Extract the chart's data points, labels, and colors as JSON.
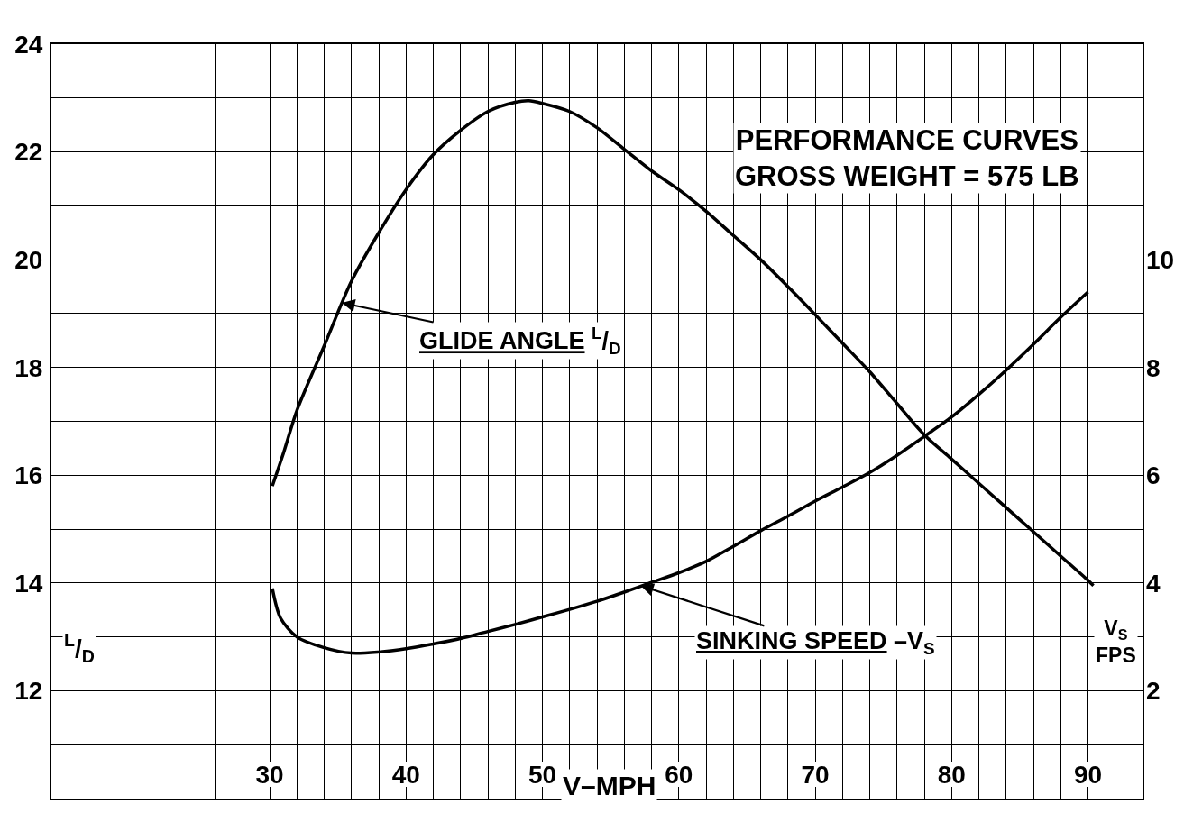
{
  "chart_data": {
    "type": "line",
    "title": "PERFORMANCE CURVES\nGROSS WEIGHT = 575 LB",
    "xlabel": "V–MPH",
    "ylabel": "$^{L}$/$_{D}$",
    "y2label": "V$_{S}$\nFPS",
    "xlim": [
      14,
      94
    ],
    "xticks": [
      {
        "value": 18,
        "label": null
      },
      {
        "value": 22,
        "label": null
      },
      {
        "value": 26,
        "label": null
      },
      30,
      {
        "value": 32,
        "label": null
      },
      {
        "value": 34,
        "label": null
      },
      {
        "value": 36,
        "label": null
      },
      {
        "value": 38,
        "label": null
      },
      40,
      {
        "value": 42,
        "label": null
      },
      {
        "value": 44,
        "label": null
      },
      {
        "value": 46,
        "label": null
      },
      {
        "value": 48,
        "label": null
      },
      50,
      {
        "value": 52,
        "label": null
      },
      {
        "value": 54,
        "label": null
      },
      {
        "value": 56,
        "label": null
      },
      {
        "value": 58,
        "label": null
      },
      60,
      {
        "value": 62,
        "label": null
      },
      {
        "value": 64,
        "label": null
      },
      {
        "value": 66,
        "label": null
      },
      {
        "value": 68,
        "label": null
      },
      70,
      {
        "value": 72,
        "label": null
      },
      {
        "value": 74,
        "label": null
      },
      {
        "value": 76,
        "label": null
      },
      {
        "value": 78,
        "label": null
      },
      80,
      {
        "value": 82,
        "label": null
      },
      {
        "value": 84,
        "label": null
      },
      {
        "value": 86,
        "label": null
      },
      {
        "value": 88,
        "label": null
      },
      90
    ],
    "ylim": [
      10,
      24
    ],
    "yticks": [
      {
        "value": 11,
        "label": null
      },
      12,
      {
        "value": 13,
        "label": null
      },
      14,
      {
        "value": 15,
        "label": null
      },
      16,
      {
        "value": 17,
        "label": null
      },
      18,
      {
        "value": 19,
        "label": null
      },
      20,
      {
        "value": 21,
        "label": null
      },
      22,
      {
        "value": 23,
        "label": null
      },
      24
    ],
    "y2lim": [
      0,
      14
    ],
    "y2ticks": [
      2,
      4,
      6,
      8,
      10
    ],
    "grid": true,
    "line_style": "solid",
    "series": [
      {
        "color": "#000000",
        "x": [
          30.2,
          31,
          32,
          34,
          36,
          38,
          40,
          42,
          44,
          46,
          48,
          49,
          50,
          52,
          54,
          56,
          58,
          60,
          62,
          64,
          66,
          68,
          70,
          72,
          74,
          76,
          78,
          80,
          82,
          84,
          86,
          88,
          90,
          90.4
        ],
        "values": [
          15.8,
          16.4,
          17.2,
          18.4,
          19.6,
          20.5,
          21.3,
          21.95,
          22.4,
          22.75,
          22.92,
          22.95,
          22.9,
          22.75,
          22.45,
          22.05,
          21.65,
          21.3,
          20.9,
          20.45,
          20.0,
          19.5,
          18.98,
          18.45,
          17.92,
          17.33,
          16.75,
          16.3,
          15.85,
          15.4,
          14.95,
          14.5,
          14.05,
          13.95
        ]
      },
      {
        "color": "#000000",
        "axis": "y2",
        "x": [
          30.2,
          30.8,
          32,
          34,
          36,
          38,
          40,
          42,
          44,
          46,
          48,
          50,
          52,
          54,
          56,
          58,
          60,
          62,
          64,
          66,
          68,
          70,
          72,
          74,
          76,
          78,
          80,
          82,
          84,
          86,
          88,
          90
        ],
        "values": [
          3.9,
          3.35,
          3.0,
          2.8,
          2.7,
          2.72,
          2.78,
          2.87,
          2.97,
          3.1,
          3.23,
          3.37,
          3.51,
          3.66,
          3.83,
          4.01,
          4.19,
          4.4,
          4.68,
          4.97,
          5.24,
          5.52,
          5.78,
          6.05,
          6.37,
          6.72,
          7.08,
          7.5,
          7.95,
          8.43,
          8.93,
          9.4
        ]
      }
    ],
    "annotations": [
      {
        "text": "GLIDE ANGLE $^{L}$/$_{D}$",
        "x": 35.3,
        "y": 19.2
      },
      {
        "text": "SINKING SPEED –V$_{S}$",
        "x": 57.2,
        "y": 13.95
      }
    ]
  }
}
